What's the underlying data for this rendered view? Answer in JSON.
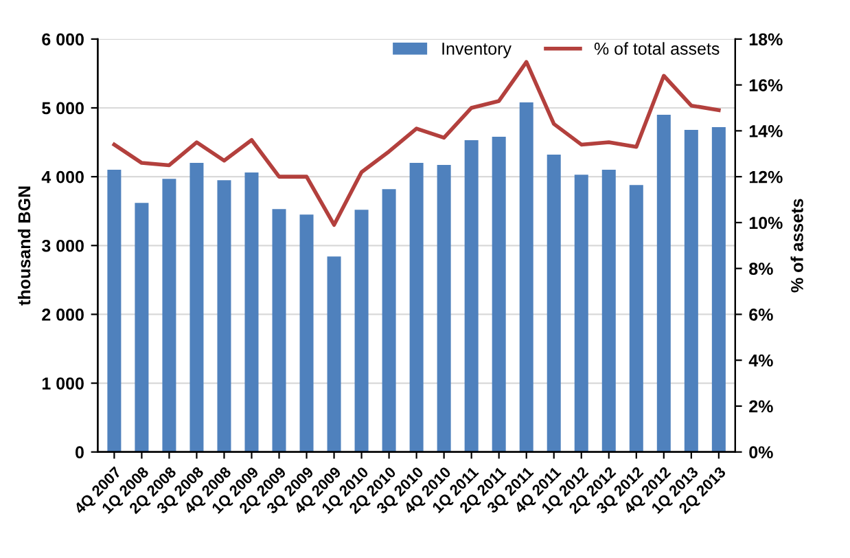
{
  "chart_data": {
    "type": "bar",
    "ylabel": "thousand BGN",
    "y2label": "% of assets",
    "categories": [
      "4Q 2007",
      "1Q 2008",
      "2Q 2008",
      "3Q 2008",
      "4Q 2008",
      "1Q 2009",
      "2Q 2009",
      "3Q 2009",
      "4Q 2009",
      "1Q 2010",
      "2Q 2010",
      "3Q 2010",
      "4Q 2010",
      "1Q 2011",
      "2Q 2011",
      "3Q 2011",
      "4Q 2011",
      "1Q 2012",
      "2Q 2012",
      "3Q 2012",
      "4Q 2012",
      "1Q 2013",
      "2Q 2013"
    ],
    "series": [
      {
        "name": "Inventory",
        "color": "#4f81bd",
        "values": [
          4100,
          3620,
          3970,
          4200,
          3950,
          4060,
          3530,
          3450,
          2840,
          3520,
          3820,
          4200,
          4170,
          4530,
          4580,
          5080,
          4320,
          4030,
          4100,
          3880,
          4900,
          4680,
          4720
        ]
      },
      {
        "name": "% of total assets",
        "type": "line",
        "axis": "y2",
        "color": "#b3403d",
        "values": [
          13.4,
          12.6,
          12.5,
          13.5,
          12.7,
          13.6,
          12.0,
          12.0,
          9.9,
          12.2,
          13.1,
          14.1,
          13.7,
          15.0,
          15.3,
          17.0,
          14.3,
          13.4,
          13.5,
          13.3,
          16.4,
          15.1,
          14.9
        ]
      }
    ],
    "ylim": [
      0,
      6000
    ],
    "yticks": [
      {
        "value": 0,
        "label": "0"
      },
      {
        "value": 1000,
        "label": "1 000"
      },
      {
        "value": 2000,
        "label": "2 000"
      },
      {
        "value": 3000,
        "label": "3 000"
      },
      {
        "value": 4000,
        "label": "4 000"
      },
      {
        "value": 5000,
        "label": "5 000"
      },
      {
        "value": 6000,
        "label": "6 000"
      }
    ],
    "y2lim": [
      0,
      18
    ],
    "y2ticks": [
      {
        "value": 0,
        "label": "0%"
      },
      {
        "value": 2,
        "label": "2%"
      },
      {
        "value": 4,
        "label": "4%"
      },
      {
        "value": 6,
        "label": "6%"
      },
      {
        "value": 8,
        "label": "8%"
      },
      {
        "value": 10,
        "label": "10%"
      },
      {
        "value": 12,
        "label": "12%"
      },
      {
        "value": 14,
        "label": "14%"
      },
      {
        "value": 16,
        "label": "16%"
      },
      {
        "value": 18,
        "label": "18%"
      }
    ],
    "grid": "y",
    "legend": "top right",
    "marker": "none",
    "line_style": "solid"
  }
}
